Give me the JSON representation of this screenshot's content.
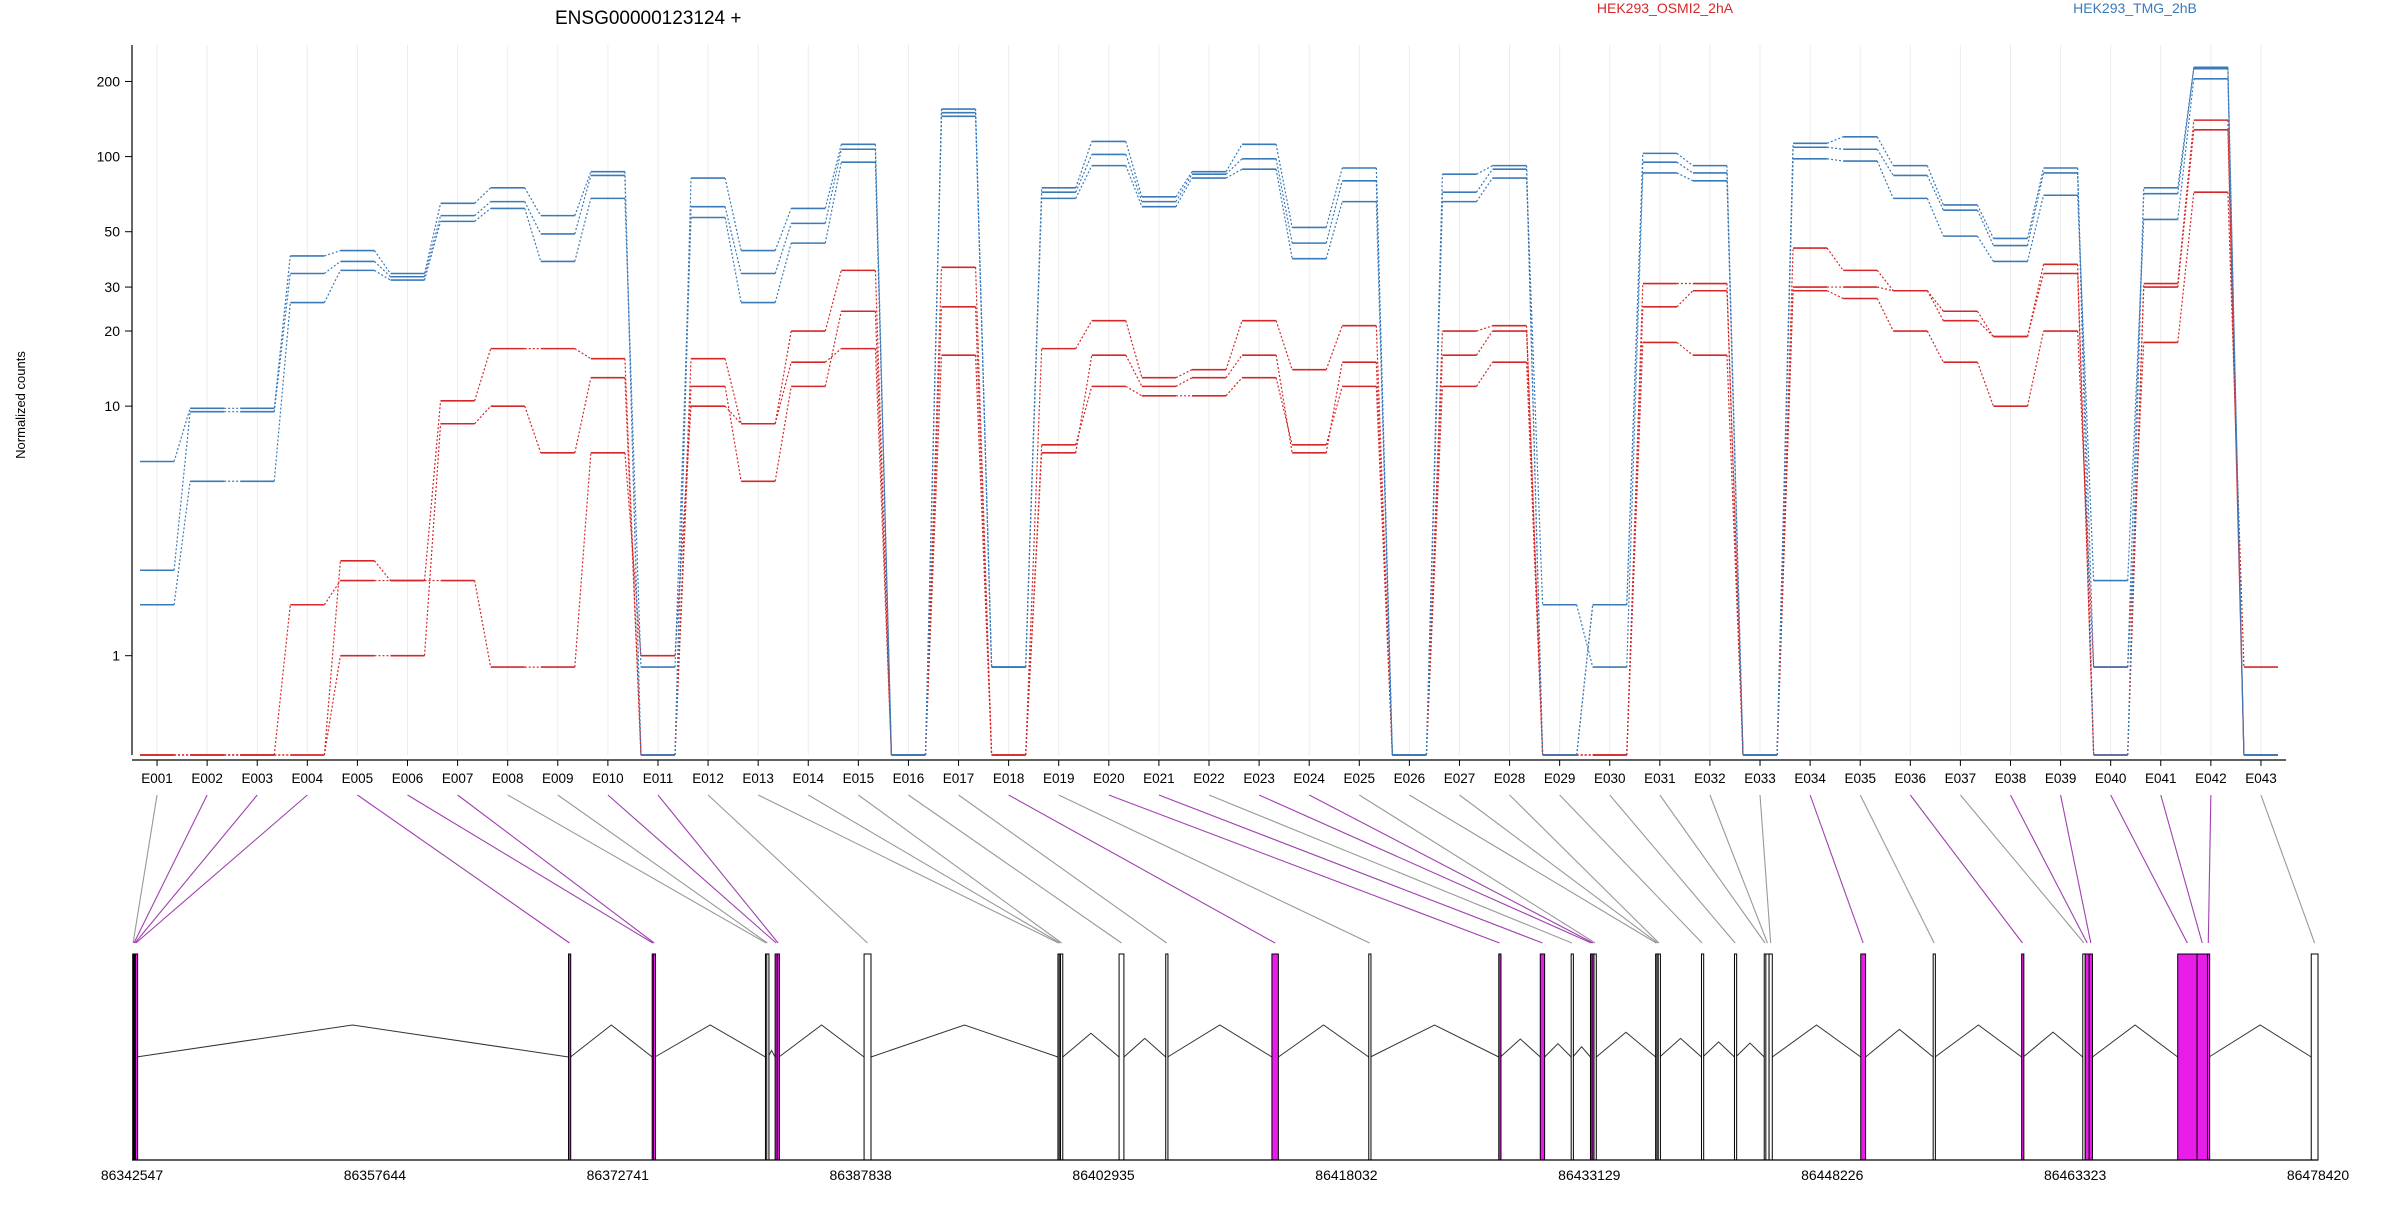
{
  "chart_data": {
    "type": "line",
    "title": "ENSG00000123124 +",
    "ylabel": "Normalized counts",
    "xlabel": "",
    "yscale": "log",
    "ylim": [
      0.4,
      280
    ],
    "yticks": [
      1,
      10,
      20,
      30,
      50,
      100,
      200
    ],
    "ytick_labels": [
      "1",
      "10",
      "20",
      "30",
      "50",
      "100",
      "200"
    ],
    "grid": true,
    "legend_position": "top-right",
    "categories": [
      "E001",
      "E002",
      "E003",
      "E004",
      "E005",
      "E006",
      "E007",
      "E008",
      "E009",
      "E010",
      "E011",
      "E012",
      "E013",
      "E014",
      "E015",
      "E016",
      "E017",
      "E018",
      "E019",
      "E020",
      "E021",
      "E022",
      "E023",
      "E024",
      "E025",
      "E026",
      "E027",
      "E028",
      "E029",
      "E030",
      "E031",
      "E032",
      "E033",
      "E034",
      "E035",
      "E036",
      "E037",
      "E038",
      "E039",
      "E040",
      "E041",
      "E042",
      "E043"
    ],
    "series": [
      {
        "name": "HEK293_OSMI2_2hA",
        "color": "#d62728",
        "values": [
          0.4,
          0.4,
          0.4,
          1.6,
          2.0,
          2.0,
          2.0,
          0.9,
          0.9,
          6.5,
          1.0,
          10,
          8.5,
          15,
          17,
          0.4,
          25,
          0.4,
          7,
          12,
          11,
          11,
          13,
          7,
          12,
          0.4,
          12,
          15,
          0.4,
          0.4,
          18,
          16,
          0.4,
          29,
          27,
          20,
          15,
          10,
          20,
          0.9,
          18,
          72,
          0.9
        ]
      },
      {
        "name": "HEK293_OSMI2_2hA",
        "color": "#d62728",
        "values": [
          0.4,
          0.4,
          0.4,
          0.4,
          1.0,
          1.0,
          8.5,
          10,
          6.5,
          13,
          0.4,
          12,
          5,
          12,
          24,
          0.4,
          16,
          0.4,
          6.5,
          16,
          12,
          13,
          16,
          6.5,
          15,
          0.4,
          16,
          20,
          0.4,
          0.4,
          25,
          29,
          0.4,
          30,
          30,
          29,
          22,
          19,
          34,
          0.4,
          30,
          128,
          0.4
        ]
      },
      {
        "name": "HEK293_OSMI2_2hA",
        "color": "#d62728",
        "values": [
          0.4,
          0.4,
          0.4,
          0.4,
          2.4,
          2.0,
          10.5,
          17,
          17,
          15.5,
          0.4,
          15.5,
          8.5,
          20,
          35,
          0.4,
          36,
          0.4,
          17,
          22,
          13,
          14,
          22,
          14,
          21,
          0.4,
          20,
          21,
          0.4,
          0.4,
          31,
          31,
          0.4,
          43,
          35,
          29,
          24,
          19,
          37,
          0.4,
          31,
          140,
          0.4
        ]
      },
      {
        "name": "HEK293_TMG_2hB",
        "color": "#3a7ab8",
        "values": [
          1.6,
          5,
          5,
          26,
          35,
          32,
          55,
          62,
          38,
          68,
          0.9,
          57,
          26,
          45,
          95,
          0.4,
          145,
          0.9,
          68,
          92,
          63,
          82,
          89,
          39,
          66,
          0.4,
          66,
          82,
          1.6,
          0.9,
          86,
          80,
          0.4,
          98,
          96,
          68,
          48,
          38,
          70,
          2.0,
          56,
          205,
          0.4
        ]
      },
      {
        "name": "HEK293_TMG_2hB",
        "color": "#3a7ab8",
        "values": [
          2.2,
          9.5,
          9.5,
          34,
          38,
          33,
          58,
          66,
          49,
          84,
          0.4,
          63,
          34,
          54,
          107,
          0.4,
          150,
          0.9,
          72,
          102,
          66,
          85,
          98,
          45,
          80,
          0.4,
          72,
          89,
          0.4,
          1.6,
          95,
          86,
          0.4,
          109,
          107,
          84,
          61,
          44,
          86,
          0.9,
          71,
          225,
          0.4
        ]
      },
      {
        "name": "HEK293_TMG_2hB",
        "color": "#3a7ab8",
        "values": [
          6,
          9.8,
          9.8,
          40,
          42,
          34,
          65,
          75,
          58,
          87,
          0.4,
          82,
          42,
          62,
          112,
          0.4,
          155,
          0.9,
          75,
          115,
          69,
          87,
          112,
          52,
          90,
          0.4,
          85,
          92,
          0.4,
          1.6,
          103,
          92,
          0.4,
          113,
          120,
          92,
          64,
          47,
          90,
          0.4,
          75,
          228,
          0.4
        ]
      }
    ],
    "legend": [
      "HEK293_OSMI2_2hA",
      "HEK293_TMG_2hB"
    ],
    "gene_model": {
      "genomic_ticks": [
        "86342547",
        "86357644",
        "86372741",
        "86387838",
        "86402935",
        "86418032",
        "86433129",
        "86448226",
        "86463323",
        "86478420"
      ],
      "genomic_range": [
        86342547,
        86478420
      ],
      "exon_colors": {
        "significant": "#e81ee8",
        "normal": "#ffffff",
        "outline": "#000000"
      },
      "connector_colors": {
        "significant": "#a040b0",
        "normal": "#999999"
      },
      "exons": [
        {
          "id": "E001",
          "start": 86342590,
          "end": 86342640,
          "significant": false
        },
        {
          "id": "E002",
          "start": 86342640,
          "end": 86342700,
          "significant": true
        },
        {
          "id": "E003",
          "start": 86342700,
          "end": 86342760,
          "significant": true
        },
        {
          "id": "E004",
          "start": 86342760,
          "end": 86342820,
          "significant": true
        },
        {
          "id": "E005",
          "start": 86369680,
          "end": 86369800,
          "significant": true
        },
        {
          "id": "E006",
          "start": 86374880,
          "end": 86374950,
          "significant": true
        },
        {
          "id": "E007",
          "start": 86374950,
          "end": 86375050,
          "significant": true
        },
        {
          "id": "E008",
          "start": 86381920,
          "end": 86382000,
          "significant": false
        },
        {
          "id": "E009",
          "start": 86382000,
          "end": 86382080,
          "significant": false
        },
        {
          "id": "E010",
          "start": 86382520,
          "end": 86382650,
          "significant": true
        },
        {
          "id": "E011",
          "start": 86382650,
          "end": 86382760,
          "significant": true
        },
        {
          "id": "E012",
          "start": 86388050,
          "end": 86388480,
          "significant": false
        },
        {
          "id": "E013",
          "start": 86400100,
          "end": 86400180,
          "significant": false
        },
        {
          "id": "E014",
          "start": 86400180,
          "end": 86400260,
          "significant": false
        },
        {
          "id": "E015",
          "start": 86400260,
          "end": 86400400,
          "significant": false
        },
        {
          "id": "E016",
          "start": 86403900,
          "end": 86404200,
          "significant": false
        },
        {
          "id": "E017",
          "start": 86406800,
          "end": 86406920,
          "significant": false
        },
        {
          "id": "E018",
          "start": 86413400,
          "end": 86413800,
          "significant": true
        },
        {
          "id": "E019",
          "start": 86419420,
          "end": 86419520,
          "significant": false
        },
        {
          "id": "E020",
          "start": 86427500,
          "end": 86427600,
          "significant": true
        },
        {
          "id": "E021",
          "start": 86430080,
          "end": 86430350,
          "significant": true
        },
        {
          "id": "E022",
          "start": 86432000,
          "end": 86432100,
          "significant": false
        },
        {
          "id": "E023",
          "start": 86433200,
          "end": 86433300,
          "significant": true
        },
        {
          "id": "E024",
          "start": 86433300,
          "end": 86433420,
          "significant": true
        },
        {
          "id": "E025",
          "start": 86433420,
          "end": 86433560,
          "significant": false
        },
        {
          "id": "E026",
          "start": 86437250,
          "end": 86437330,
          "significant": false
        },
        {
          "id": "E027",
          "start": 86437330,
          "end": 86437410,
          "significant": false
        },
        {
          "id": "E028",
          "start": 86437410,
          "end": 86437500,
          "significant": false
        },
        {
          "id": "E029",
          "start": 86440100,
          "end": 86440180,
          "significant": false
        },
        {
          "id": "E030",
          "start": 86442150,
          "end": 86442230,
          "significant": false
        },
        {
          "id": "E031",
          "start": 86444000,
          "end": 86444100,
          "significant": false
        },
        {
          "id": "E032",
          "start": 86444100,
          "end": 86444300,
          "significant": false
        },
        {
          "id": "E033",
          "start": 86444300,
          "end": 86444500,
          "significant": false
        },
        {
          "id": "E034",
          "start": 86450000,
          "end": 86450300,
          "significant": true
        },
        {
          "id": "E035",
          "start": 86454500,
          "end": 86454620,
          "significant": false
        },
        {
          "id": "E036",
          "start": 86460000,
          "end": 86460100,
          "significant": true
        },
        {
          "id": "E037",
          "start": 86463800,
          "end": 86463950,
          "significant": false
        },
        {
          "id": "E038",
          "start": 86463950,
          "end": 86464200,
          "significant": true
        },
        {
          "id": "E039",
          "start": 86464200,
          "end": 86464400,
          "significant": true
        },
        {
          "id": "E040",
          "start": 86469700,
          "end": 86470900,
          "significant": true
        },
        {
          "id": "E041",
          "start": 86470900,
          "end": 86471550,
          "significant": true
        },
        {
          "id": "E042",
          "start": 86471550,
          "end": 86471650,
          "significant": true
        },
        {
          "id": "E043",
          "start": 86478000,
          "end": 86478420,
          "significant": false
        }
      ]
    }
  }
}
